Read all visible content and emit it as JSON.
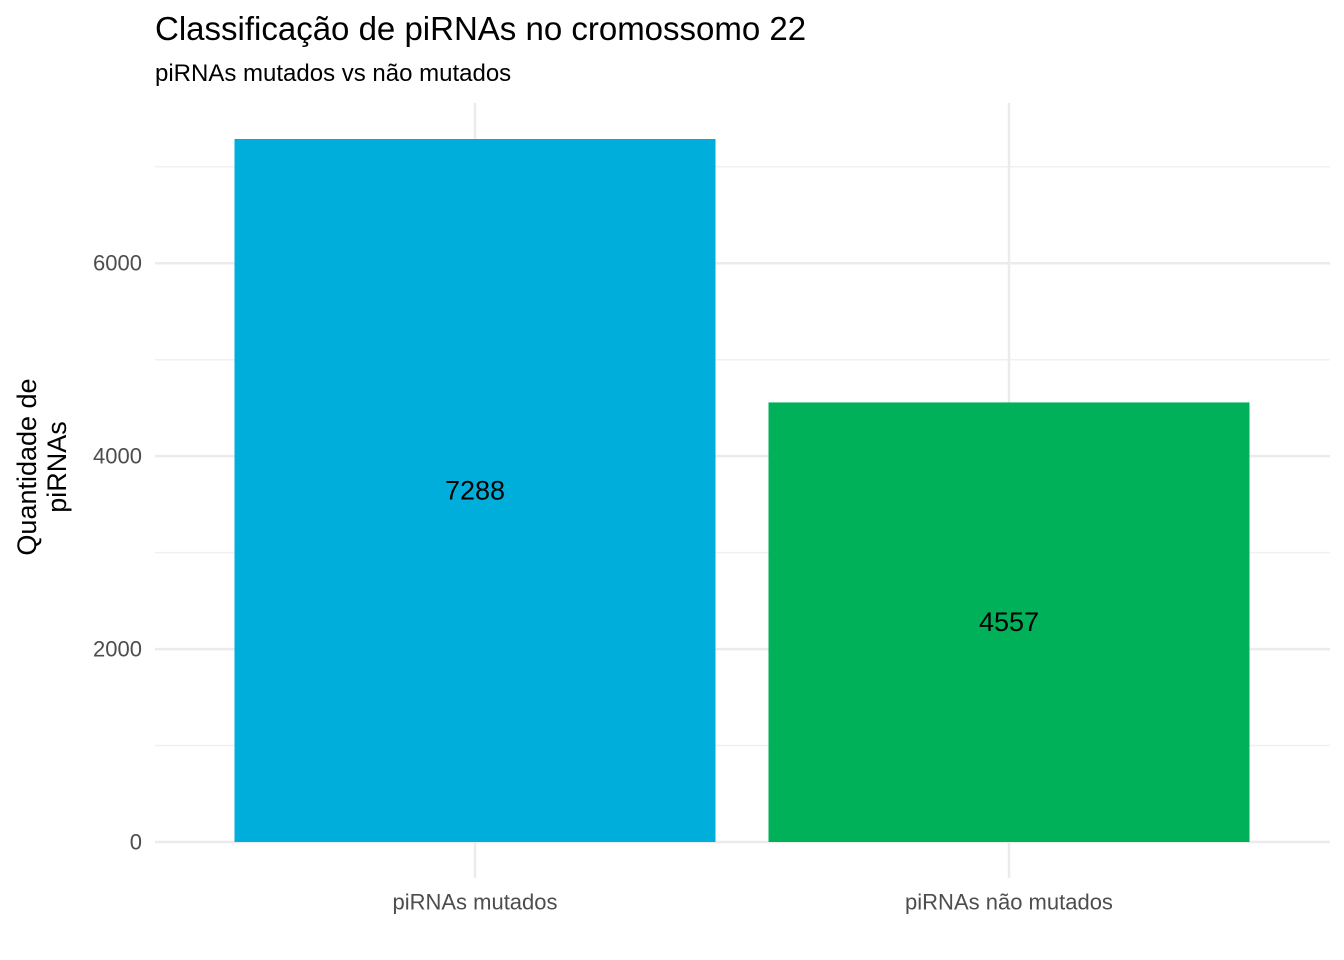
{
  "chart_data": {
    "type": "bar",
    "title": "Classificação de piRNAs no cromossomo 22",
    "subtitle": "piRNAs mutados vs não mutados",
    "xlabel": "",
    "ylabel": "Quantidade de piRNAs",
    "ylabel_lines": [
      "Quantidade de",
      "piRNAs"
    ],
    "categories": [
      "piRNAs mutados",
      "piRNAs não mutados"
    ],
    "values": [
      7288,
      4557
    ],
    "data_labels": [
      "7288",
      "4557"
    ],
    "colors": [
      "#00AEDB",
      "#00B159"
    ],
    "ylim": [
      0,
      7288
    ],
    "yticks": [
      0,
      2000,
      4000,
      6000
    ],
    "ytick_labels": [
      "0",
      "2000",
      "4000",
      "6000"
    ],
    "grid": true,
    "legend": "none"
  }
}
